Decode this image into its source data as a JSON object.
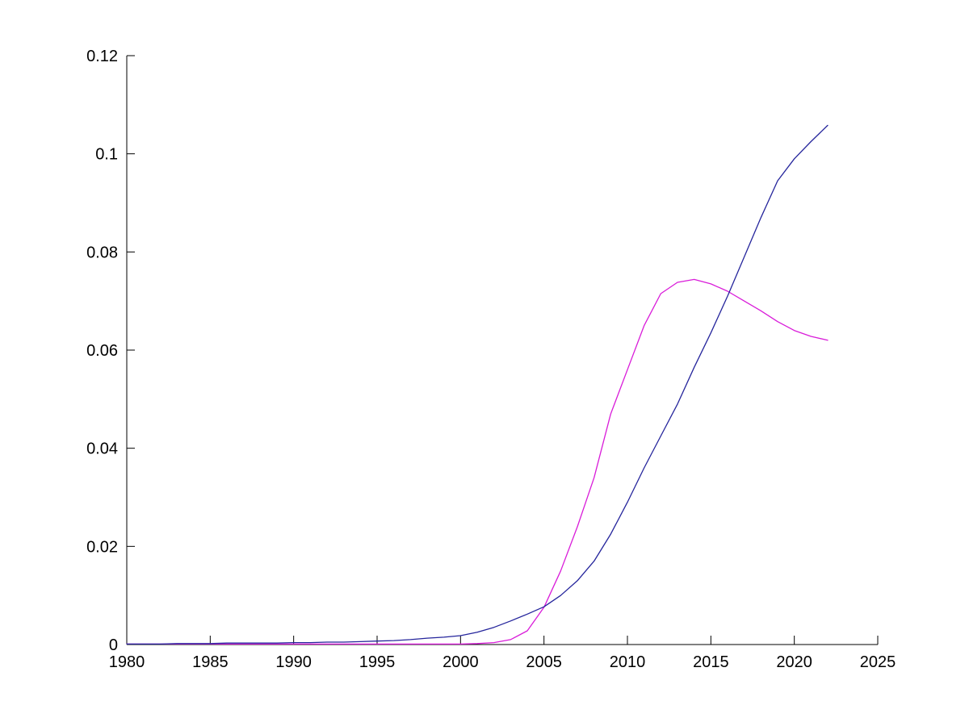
{
  "figure": {
    "background_color": "#ffffff",
    "axis_color": "#000000",
    "title": ""
  },
  "chart_data": {
    "type": "line",
    "title": "",
    "xlabel": "",
    "ylabel": "",
    "xlim": [
      1980,
      2025
    ],
    "ylim": [
      0,
      0.12
    ],
    "grid": false,
    "legend": "none",
    "xticks": [
      1980,
      1985,
      1990,
      1995,
      2000,
      2005,
      2010,
      2015,
      2020,
      2025
    ],
    "xtick_labels": [
      "1980",
      "1985",
      "1990",
      "1995",
      "2000",
      "2005",
      "2010",
      "2015",
      "2020",
      "2025"
    ],
    "yticks": [
      0,
      0.02,
      0.04,
      0.06,
      0.08,
      0.1,
      0.12
    ],
    "ytick_labels": [
      "0",
      "0.02",
      "0.04",
      "0.06",
      "0.08",
      "0.1",
      "0.12"
    ],
    "x": [
      1980,
      1981,
      1982,
      1983,
      1984,
      1985,
      1986,
      1987,
      1988,
      1989,
      1990,
      1991,
      1992,
      1993,
      1994,
      1995,
      1996,
      1997,
      1998,
      1999,
      2000,
      2001,
      2002,
      2003,
      2004,
      2005,
      2006,
      2007,
      2008,
      2009,
      2010,
      2011,
      2012,
      2013,
      2014,
      2015,
      2016,
      2017,
      2018,
      2019,
      2020,
      2021,
      2022
    ],
    "series": [
      {
        "name": "magenta-line",
        "color": "#D91CD9",
        "values": [
          0.0001,
          0.0001,
          0.0001,
          0.0001,
          0.0001,
          0.0001,
          0.0001,
          0.0001,
          0.0001,
          0.0001,
          0.0001,
          0.0001,
          0.0001,
          0.0001,
          0.0001,
          0.0001,
          0.0001,
          0.0001,
          0.0001,
          0.0001,
          0.0001,
          0.0002,
          0.0004,
          0.001,
          0.0028,
          0.0076,
          0.015,
          0.024,
          0.034,
          0.047,
          0.056,
          0.065,
          0.0715,
          0.0738,
          0.0744,
          0.0735,
          0.072,
          0.07,
          0.068,
          0.0658,
          0.064,
          0.0628,
          0.062
        ]
      },
      {
        "name": "dark-blue-line",
        "color": "#25259C",
        "values": [
          0.0001,
          0.0001,
          0.0001,
          0.0002,
          0.0002,
          0.0002,
          0.0003,
          0.0003,
          0.0003,
          0.0003,
          0.0004,
          0.0004,
          0.0005,
          0.0005,
          0.0006,
          0.0007,
          0.0008,
          0.001,
          0.0013,
          0.0015,
          0.0018,
          0.0025,
          0.0035,
          0.0048,
          0.0062,
          0.0077,
          0.01,
          0.013,
          0.017,
          0.0225,
          0.029,
          0.036,
          0.0425,
          0.049,
          0.0565,
          0.0635,
          0.071,
          0.079,
          0.087,
          0.0945,
          0.099,
          0.1025,
          0.1058
        ]
      }
    ]
  }
}
